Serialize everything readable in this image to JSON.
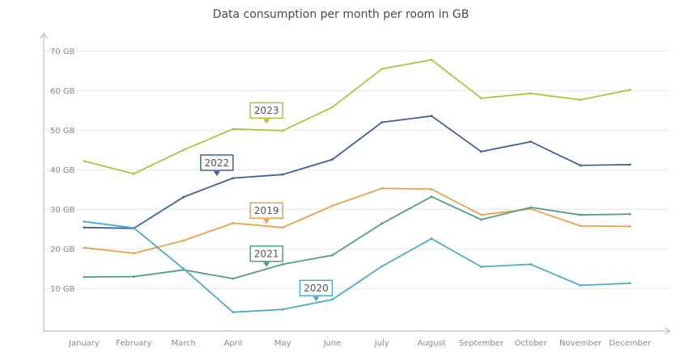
{
  "chart_data": {
    "type": "line",
    "title": "Data consumption per month per room in GB",
    "xlabel": "",
    "ylabel": "",
    "ylim": [
      0,
      75
    ],
    "yticks": [
      10,
      20,
      30,
      40,
      50,
      60,
      70
    ],
    "ytick_labels": [
      "10 GB",
      "20 GB",
      "30 GB",
      "40 GB",
      "50 GB",
      "60 GB",
      "70 GB"
    ],
    "categories": [
      "January",
      "February",
      "March",
      "April",
      "May",
      "June",
      "July",
      "August",
      "September",
      "October",
      "November",
      "December"
    ],
    "grid": true,
    "series": [
      {
        "name": "2023",
        "color": "#b6bf3c",
        "label_month": 4,
        "label_value": 55,
        "values": [
          42.2,
          39.0,
          45.0,
          50.3,
          49.9,
          55.8,
          65.5,
          67.8,
          58.1,
          59.3,
          57.7,
          60.2
        ]
      },
      {
        "name": "2022",
        "color": "#3f5ea1",
        "label_month": 3,
        "label_value": 41.8,
        "values": [
          25.4,
          25.2,
          33.1,
          37.9,
          38.8,
          42.6,
          52.0,
          53.6,
          44.6,
          47.1,
          41.1,
          41.3
        ]
      },
      {
        "name": "2019",
        "color": "#e9a24a",
        "label_month": 4,
        "label_value": 29.7,
        "values": [
          20.3,
          18.9,
          22.1,
          26.5,
          25.4,
          30.9,
          35.3,
          35.1,
          28.6,
          30.1,
          25.8,
          25.7
        ]
      },
      {
        "name": "2021",
        "color": "#4e9e8c",
        "label_month": 4,
        "label_value": 18.8,
        "values": [
          12.9,
          13.0,
          14.7,
          12.5,
          16.1,
          18.4,
          26.4,
          33.2,
          27.4,
          30.5,
          28.6,
          28.8
        ]
      },
      {
        "name": "2020",
        "color": "#4bacc4",
        "label_month": 5,
        "label_value": 10.1,
        "values": [
          26.9,
          25.3,
          15.0,
          4.0,
          4.7,
          7.2,
          15.6,
          22.6,
          15.5,
          16.1,
          10.8,
          11.3
        ]
      }
    ]
  }
}
